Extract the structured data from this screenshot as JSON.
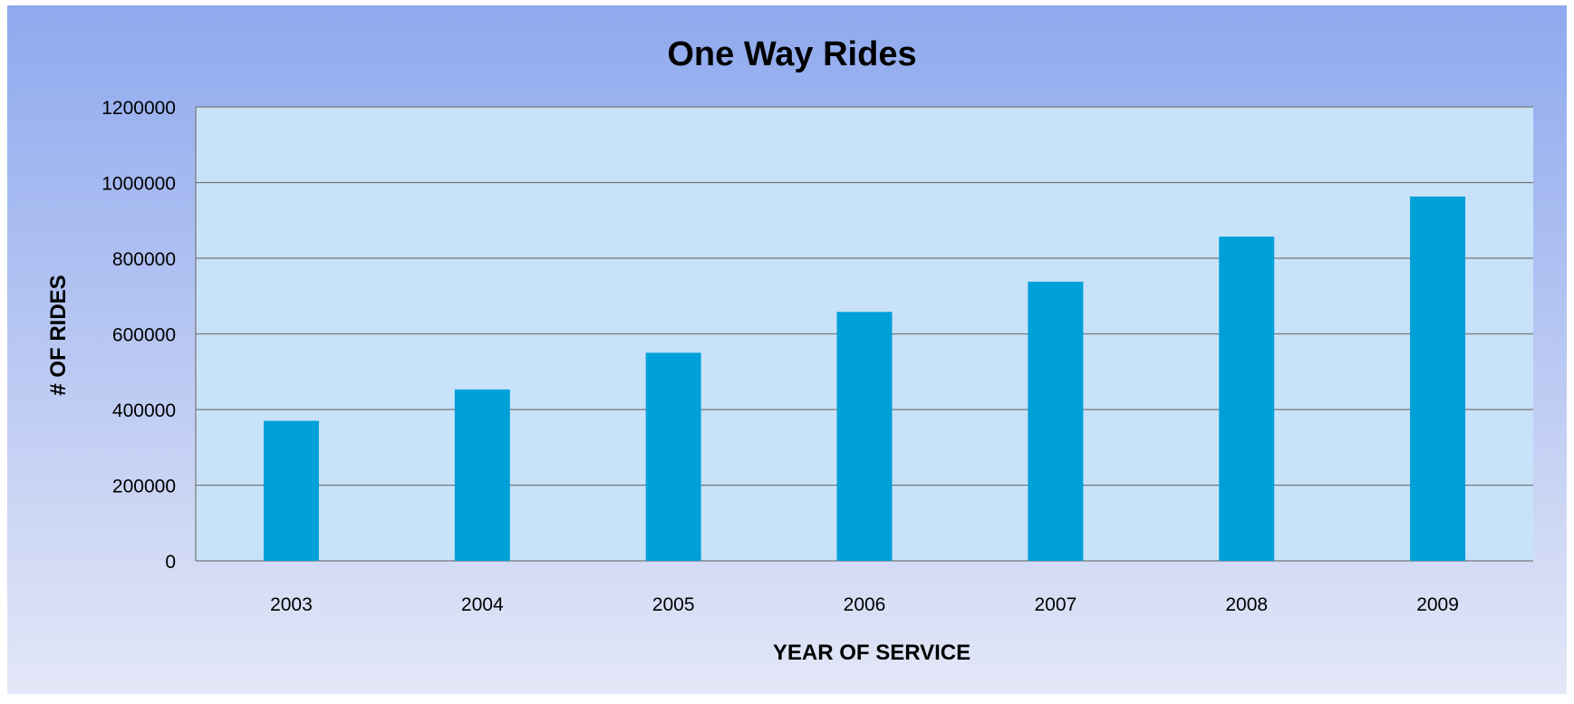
{
  "chart_data": {
    "type": "bar",
    "title": "One Way Rides",
    "xlabel": "YEAR OF SERVICE",
    "ylabel": "# OF RIDES",
    "categories": [
      "2003",
      "2004",
      "2005",
      "2006",
      "2007",
      "2008",
      "2009"
    ],
    "values": [
      370000,
      453000,
      550000,
      658000,
      738000,
      857000,
      963000
    ],
    "ylim": [
      0,
      1200000
    ],
    "yticks": [
      "0",
      "200000",
      "400000",
      "600000",
      "800000",
      "1000000",
      "1200000"
    ],
    "grid": true,
    "legend": "none",
    "colors": {
      "bar": "#00A0D8",
      "plot_area": "#C8E2FA",
      "background_top": "#8EA9EE",
      "background_bottom": "#E3E7F7",
      "gridline": "#777777",
      "text": "#000000"
    }
  }
}
